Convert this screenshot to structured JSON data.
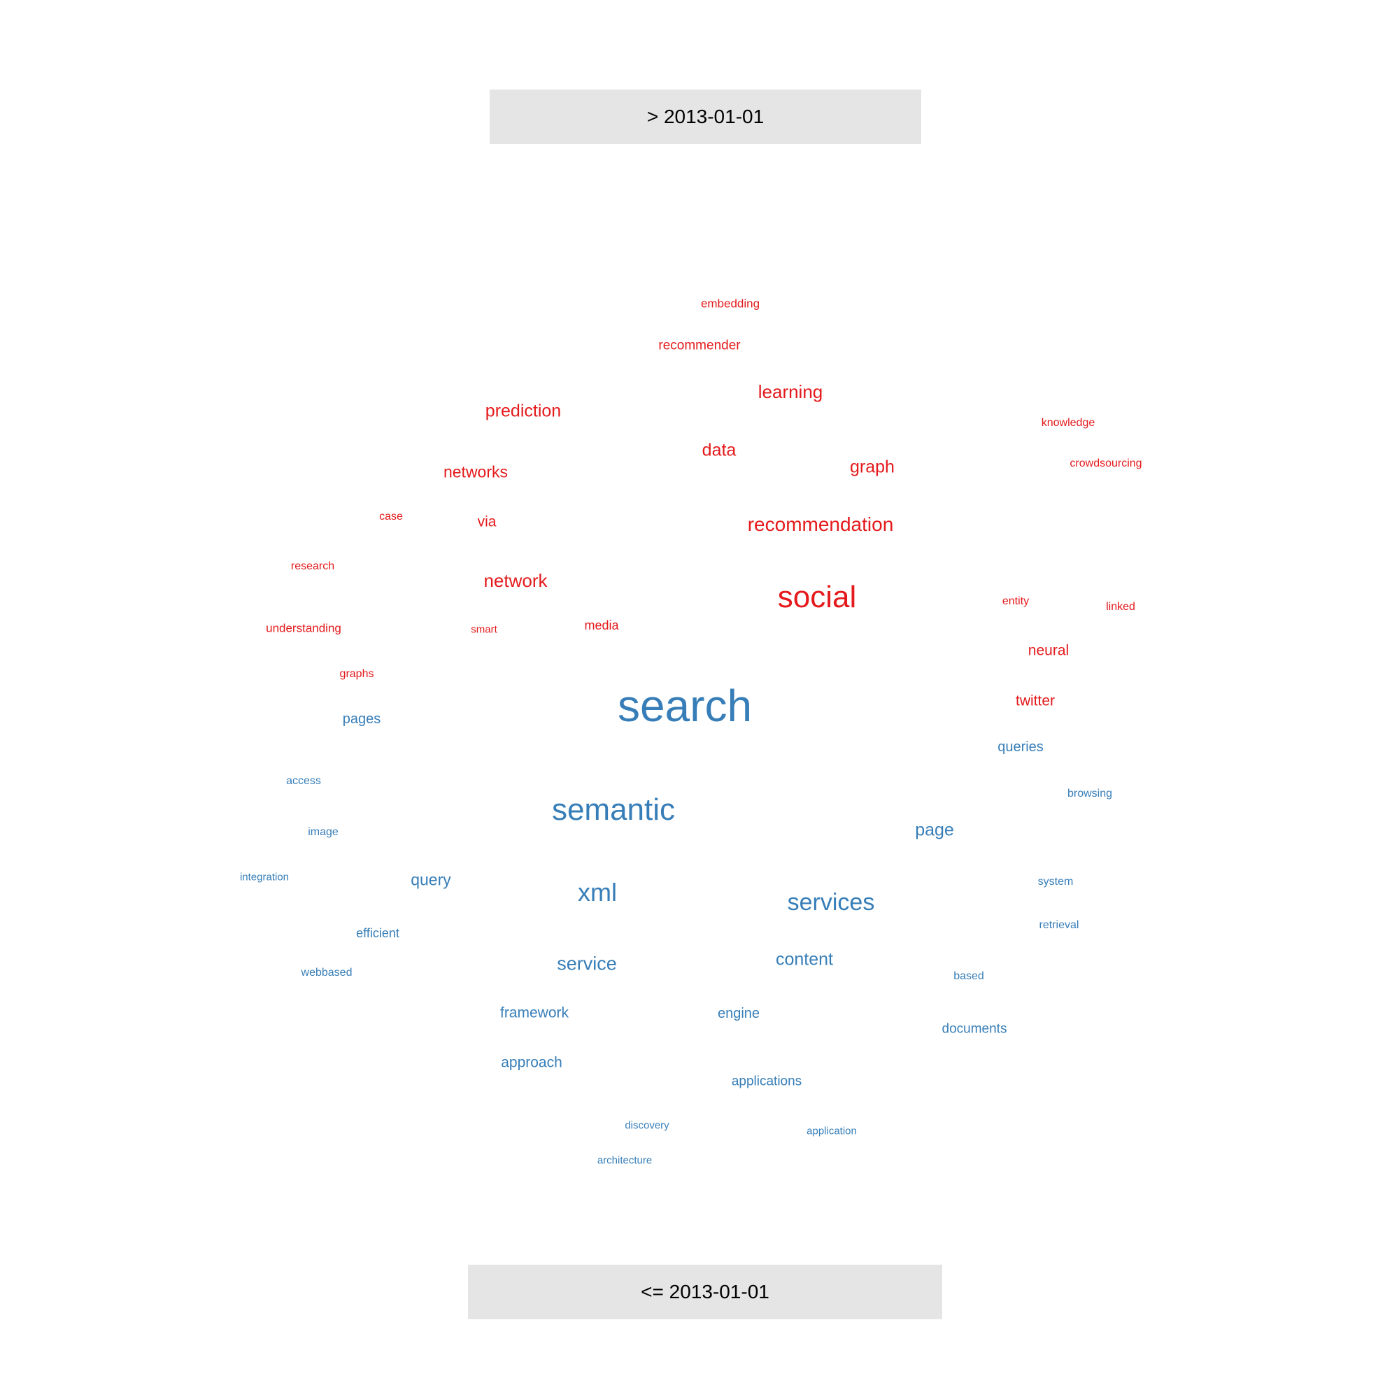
{
  "labels": {
    "top": "> 2013-01-01",
    "bottom": "<= 2013-01-01"
  },
  "colors": {
    "newer": "#e41a1c",
    "older": "#377eb8",
    "label_bg": "#e5e5e5"
  },
  "chart_data": {
    "type": "comparison-wordcloud",
    "groups": [
      {
        "name": "> 2013-01-01",
        "color": "#e41a1c",
        "words": [
          "social",
          "recommendation",
          "learning",
          "prediction",
          "data",
          "graph",
          "networks",
          "network",
          "recommender",
          "via",
          "embedding",
          "neural",
          "twitter",
          "media",
          "knowledge",
          "crowdsourcing",
          "case",
          "research",
          "entity",
          "linked",
          "understanding",
          "smart",
          "graphs"
        ]
      },
      {
        "name": "<= 2013-01-01",
        "color": "#377eb8",
        "words": [
          "search",
          "semantic",
          "services",
          "xml",
          "service",
          "content",
          "page",
          "query",
          "framework",
          "approach",
          "engine",
          "documents",
          "applications",
          "queries",
          "pages",
          "efficient",
          "access",
          "image",
          "browsing",
          "integration",
          "webbased",
          "system",
          "retrieval",
          "based",
          "discovery",
          "application",
          "architecture"
        ]
      }
    ]
  }
}
